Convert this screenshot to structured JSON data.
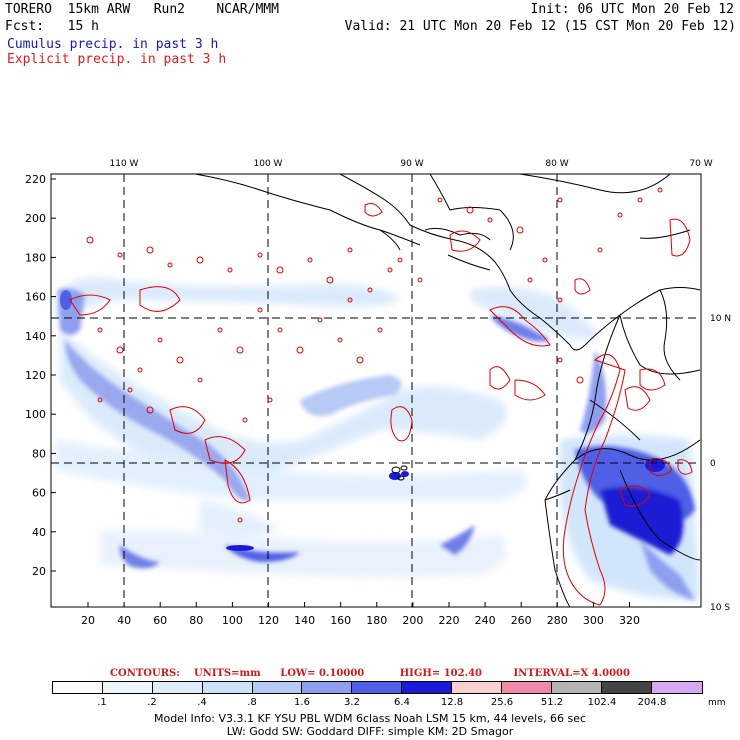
{
  "header": {
    "line1_left": "TORERO  15km ARW   Run2    NCAR/MMM",
    "line1_right": "Init: 06 UTC Mon 20 Feb 12",
    "line2_left": "Fcst:   15 h",
    "line2_right": "Valid: 21 UTC Mon 20 Feb 12 (15 CST Mon 20 Feb 12)",
    "cumulus_label": "Cumulus precip. in past 3 h",
    "explicit_label": "Explicit precip. in past 3 h"
  },
  "map": {
    "y_ticks": [
      "20",
      "40",
      "60",
      "80",
      "100",
      "120",
      "140",
      "160",
      "180",
      "200",
      "220"
    ],
    "x_ticks": [
      "20",
      "40",
      "60",
      "80",
      "100",
      "120",
      "140",
      "160",
      "180",
      "200",
      "220",
      "240",
      "260",
      "280",
      "300",
      "320"
    ],
    "lon_labels": [
      "110 W",
      "100 W",
      "90 W",
      "80 W",
      "70 W"
    ],
    "lat_labels": [
      "10 N",
      "0",
      "10 S"
    ],
    "colors": {
      "cumulus_light": "#d7e8fb",
      "cumulus_mid": "#9aa8ee",
      "cumulus_dark": "#1f1fd4",
      "explicit_contour": "#e00000",
      "coastline": "#000000"
    }
  },
  "contours": {
    "label": "CONTOURS:",
    "units": "UNITS=mm",
    "low": "LOW= 0.10000",
    "high": "HIGH=  102.40",
    "interval": "INTERVAL=X  4.0000"
  },
  "colorbar": {
    "labels": [
      ".1",
      ".2",
      ".4",
      ".8",
      "1.6",
      "3.2",
      "6.4",
      "12.8",
      "25.6",
      "51.2",
      "102.4",
      "204.8"
    ],
    "unit": "mm",
    "colors": [
      "#ffffff",
      "#f0f6ff",
      "#dfeefd",
      "#cde3fb",
      "#b7c9f5",
      "#8f9ff0",
      "#4f5fe6",
      "#1a1ad8",
      "#fbd0d0",
      "#f08aa8",
      "#b4b4b4",
      "#444444",
      "#d8a8f2"
    ]
  },
  "footer": {
    "line1": "Model Info: V3.3.1   KF     YSU PBL  WDM 6class  Noah LSM  15 km,    44 levels,    66 sec",
    "line2": "LW: Godd SW: Goddard DIFF: simple KM: 2D Smagor"
  }
}
